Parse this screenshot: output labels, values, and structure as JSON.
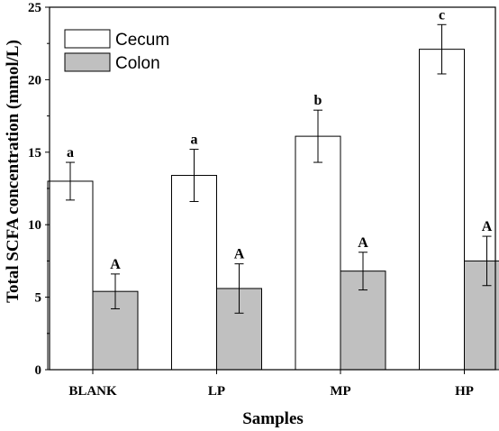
{
  "chart_data": {
    "type": "bar",
    "title": "",
    "xlabel": "Samples",
    "ylabel": "Total SCFA concentration (mmol/L)",
    "ylim": [
      0,
      25
    ],
    "yticks": [
      0,
      5,
      10,
      15,
      20,
      25
    ],
    "categories": [
      "BLANK",
      "LP",
      "MP",
      "HP"
    ],
    "series": [
      {
        "name": "Cecum",
        "values": [
          13.0,
          13.4,
          16.1,
          22.1
        ],
        "errors": [
          1.3,
          1.8,
          1.8,
          1.7
        ],
        "labels": [
          "a",
          "a",
          "b",
          "c"
        ],
        "color": "#ffffff"
      },
      {
        "name": "Colon",
        "values": [
          5.4,
          5.6,
          6.8,
          7.5
        ],
        "errors": [
          1.2,
          1.7,
          1.3,
          1.7
        ],
        "labels": [
          "A",
          "A",
          "A",
          "A"
        ],
        "color": "#c0c0c0"
      }
    ],
    "legend_position": "top-left",
    "grid": false
  }
}
